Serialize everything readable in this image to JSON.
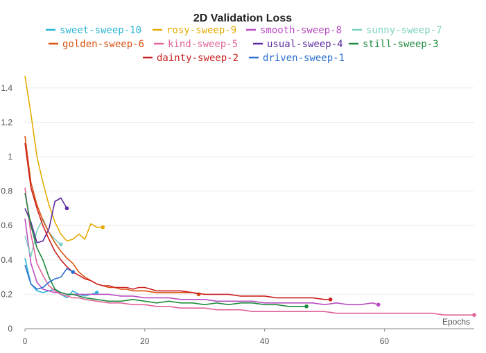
{
  "chart_data": {
    "type": "line",
    "title": "2D Validation Loss",
    "xlabel": "Epochs",
    "ylabel": "",
    "xlim": [
      0,
      75
    ],
    "ylim": [
      0,
      1.5
    ],
    "xticks": [
      0,
      20,
      40,
      60
    ],
    "yticks": [
      0,
      0.2,
      0.4,
      0.6,
      0.8,
      1,
      1.2,
      1.4
    ],
    "xtick_labels": [
      "0",
      "20",
      "40",
      "60"
    ],
    "ytick_labels": [
      "0",
      "0.2",
      "0.4",
      "0.6",
      "0.8",
      "1",
      "1.2",
      "1.4"
    ],
    "grid": true,
    "legend_position": "top",
    "series": [
      {
        "name": "sweet-sweep-10",
        "color": "#2bb6d6",
        "x": [
          0,
          1,
          2,
          3,
          4,
          5,
          6,
          7,
          8,
          9,
          10,
          11,
          12
        ],
        "y": [
          0.41,
          0.26,
          0.22,
          0.21,
          0.22,
          0.23,
          0.2,
          0.18,
          0.22,
          0.2,
          0.19,
          0.2,
          0.21
        ]
      },
      {
        "name": "rosy-sweep-9",
        "color": "#e5ab00",
        "x": [
          0,
          1,
          2,
          3,
          4,
          5,
          6,
          7,
          8,
          9,
          10,
          11,
          12,
          13
        ],
        "y": [
          1.47,
          1.25,
          1.0,
          0.85,
          0.72,
          0.62,
          0.55,
          0.51,
          0.52,
          0.55,
          0.52,
          0.61,
          0.59,
          0.59
        ]
      },
      {
        "name": "smooth-sweep-8",
        "color": "#b94cc2",
        "x": [
          0,
          1,
          2,
          3,
          4,
          5,
          6,
          7,
          8,
          9,
          10,
          12,
          14,
          16,
          18,
          20,
          22,
          24,
          26,
          28,
          30,
          32,
          34,
          36,
          38,
          40,
          42,
          44,
          46,
          48,
          50,
          52,
          54,
          56,
          58,
          59
        ],
        "y": [
          0.64,
          0.38,
          0.27,
          0.23,
          0.22,
          0.21,
          0.21,
          0.2,
          0.2,
          0.2,
          0.2,
          0.2,
          0.2,
          0.19,
          0.19,
          0.18,
          0.18,
          0.18,
          0.17,
          0.17,
          0.17,
          0.16,
          0.16,
          0.16,
          0.16,
          0.15,
          0.15,
          0.15,
          0.15,
          0.15,
          0.14,
          0.15,
          0.14,
          0.14,
          0.15,
          0.14
        ]
      },
      {
        "name": "sunny-sweep-7",
        "color": "#7dd3c0",
        "x": [
          0,
          1,
          2,
          3,
          4,
          5,
          6
        ],
        "y": [
          0.54,
          0.42,
          0.57,
          0.64,
          0.56,
          0.52,
          0.49
        ]
      },
      {
        "name": "golden-sweep-6",
        "color": "#d9500f",
        "x": [
          0,
          1,
          2,
          3,
          4,
          5,
          6,
          7,
          8,
          9,
          10,
          11,
          12,
          13,
          14,
          15,
          16,
          17,
          18,
          19,
          20,
          22,
          24,
          26,
          28,
          29
        ],
        "y": [
          1.12,
          0.85,
          0.72,
          0.63,
          0.56,
          0.5,
          0.45,
          0.41,
          0.38,
          0.33,
          0.3,
          0.28,
          0.26,
          0.25,
          0.24,
          0.24,
          0.23,
          0.23,
          0.22,
          0.22,
          0.22,
          0.21,
          0.21,
          0.21,
          0.21,
          0.2
        ]
      },
      {
        "name": "kind-sweep-5",
        "color": "#e0629a",
        "x": [
          0,
          1,
          2,
          3,
          4,
          5,
          6,
          7,
          8,
          9,
          10,
          12,
          14,
          16,
          18,
          20,
          22,
          24,
          26,
          28,
          30,
          32,
          34,
          36,
          38,
          40,
          42,
          44,
          46,
          48,
          50,
          52,
          54,
          56,
          58,
          60,
          62,
          64,
          66,
          68,
          70,
          72,
          74,
          75
        ],
        "y": [
          0.82,
          0.55,
          0.38,
          0.31,
          0.25,
          0.22,
          0.2,
          0.19,
          0.18,
          0.18,
          0.17,
          0.16,
          0.15,
          0.15,
          0.14,
          0.14,
          0.13,
          0.13,
          0.12,
          0.12,
          0.12,
          0.11,
          0.11,
          0.11,
          0.1,
          0.1,
          0.1,
          0.1,
          0.1,
          0.1,
          0.1,
          0.09,
          0.09,
          0.09,
          0.09,
          0.09,
          0.09,
          0.09,
          0.09,
          0.09,
          0.08,
          0.08,
          0.08,
          0.08
        ]
      },
      {
        "name": "usual-sweep-4",
        "color": "#5b2a9e",
        "x": [
          0,
          1,
          2,
          3,
          4,
          5,
          6,
          7
        ],
        "y": [
          0.7,
          0.62,
          0.5,
          0.51,
          0.58,
          0.74,
          0.76,
          0.7
        ]
      },
      {
        "name": "still-sweep-3",
        "color": "#1e8a3e",
        "x": [
          0,
          1,
          2,
          3,
          4,
          5,
          6,
          7,
          8,
          9,
          10,
          12,
          14,
          16,
          18,
          20,
          22,
          24,
          26,
          28,
          30,
          32,
          34,
          36,
          38,
          40,
          42,
          44,
          46,
          47
        ],
        "y": [
          0.79,
          0.6,
          0.47,
          0.4,
          0.3,
          0.23,
          0.21,
          0.2,
          0.2,
          0.19,
          0.18,
          0.17,
          0.16,
          0.16,
          0.17,
          0.16,
          0.15,
          0.16,
          0.15,
          0.15,
          0.14,
          0.15,
          0.14,
          0.15,
          0.15,
          0.14,
          0.14,
          0.13,
          0.13,
          0.13
        ]
      },
      {
        "name": "dainty-sweep-2",
        "color": "#cc1f1f",
        "x": [
          0,
          1,
          2,
          3,
          4,
          5,
          6,
          7,
          8,
          9,
          10,
          11,
          12,
          13,
          14,
          15,
          16,
          17,
          18,
          19,
          20,
          22,
          24,
          26,
          28,
          30,
          32,
          34,
          36,
          38,
          40,
          42,
          44,
          46,
          48,
          50,
          51
        ],
        "y": [
          1.08,
          0.82,
          0.7,
          0.6,
          0.52,
          0.45,
          0.4,
          0.36,
          0.33,
          0.31,
          0.29,
          0.28,
          0.26,
          0.25,
          0.25,
          0.24,
          0.24,
          0.24,
          0.23,
          0.24,
          0.24,
          0.22,
          0.22,
          0.22,
          0.21,
          0.2,
          0.2,
          0.2,
          0.19,
          0.19,
          0.19,
          0.18,
          0.18,
          0.18,
          0.18,
          0.17,
          0.17
        ]
      },
      {
        "name": "driven-sweep-1",
        "color": "#2c6fd1",
        "x": [
          0,
          1,
          2,
          3,
          4,
          5,
          6,
          7,
          8
        ],
        "y": [
          0.37,
          0.26,
          0.23,
          0.24,
          0.27,
          0.29,
          0.3,
          0.35,
          0.33
        ]
      }
    ]
  }
}
